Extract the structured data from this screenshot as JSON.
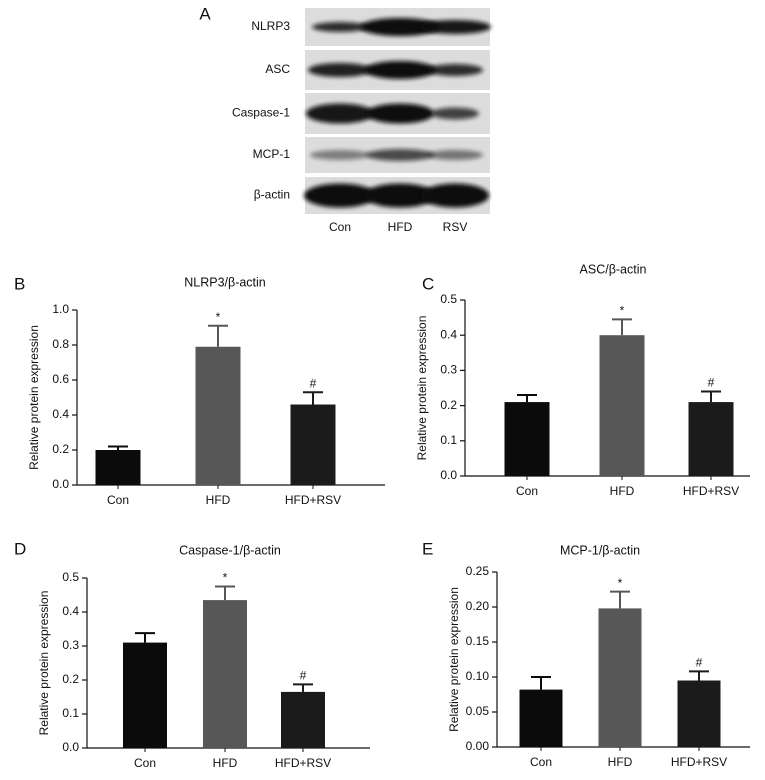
{
  "panel_a": {
    "panel_label": "A",
    "rows": [
      "NLRP3",
      "ASC",
      "Caspase-1",
      "MCP-1",
      "β-actin"
    ],
    "lanes": [
      "Con",
      "HFD",
      "RSV"
    ]
  },
  "chart_data": [
    {
      "type": "bar",
      "panel_label": "B",
      "title": "NLRP3/β-actin",
      "y_label": "Relative protein expression",
      "categories": [
        "Con",
        "HFD",
        "HFD+RSV"
      ],
      "values": [
        0.2,
        0.79,
        0.46
      ],
      "errors": [
        0.02,
        0.12,
        0.07
      ],
      "value_annotations": [
        null,
        "*",
        "#"
      ],
      "colors": [
        "#0b0b0b",
        "#575757",
        "#1b1b1b"
      ],
      "ylim": [
        0,
        1
      ],
      "yticks": [
        {
          "value": 0,
          "label": "0.0"
        },
        0.2,
        0.4,
        0.6,
        0.8,
        {
          "value": 1,
          "label": "1.0"
        }
      ]
    },
    {
      "type": "bar",
      "panel_label": "C",
      "title": "ASC/β-actin",
      "y_label": "Relative protein expression",
      "categories": [
        "Con",
        "HFD",
        "HFD+RSV"
      ],
      "values": [
        0.21,
        0.4,
        0.21
      ],
      "errors": [
        0.02,
        0.045,
        0.03
      ],
      "value_annotations": [
        null,
        "*",
        "#"
      ],
      "colors": [
        "#0b0b0b",
        "#575757",
        "#1b1b1b"
      ],
      "ylim": [
        0,
        0.5
      ],
      "yticks": [
        {
          "value": 0,
          "label": "0.0"
        },
        0.1,
        0.2,
        0.3,
        0.4,
        0.5
      ]
    },
    {
      "type": "bar",
      "panel_label": "D",
      "title": "Caspase-1/β-actin",
      "y_label": "Relative protein expression",
      "categories": [
        "Con",
        "HFD",
        "HFD+RSV"
      ],
      "values": [
        0.31,
        0.435,
        0.165
      ],
      "errors": [
        0.028,
        0.04,
        0.022
      ],
      "value_annotations": [
        null,
        "*",
        "#"
      ],
      "colors": [
        "#0b0b0b",
        "#575757",
        "#1b1b1b"
      ],
      "ylim": [
        0,
        0.5
      ],
      "yticks": [
        {
          "value": 0,
          "label": "0.0"
        },
        0.1,
        0.2,
        0.3,
        0.4,
        0.5
      ]
    },
    {
      "type": "bar",
      "panel_label": "E",
      "title": "MCP-1/β-actin",
      "y_label": "Relative protein expression",
      "categories": [
        "Con",
        "HFD",
        "HFD+RSV"
      ],
      "values": [
        0.082,
        0.198,
        0.095
      ],
      "errors": [
        0.018,
        0.024,
        0.013
      ],
      "value_annotations": [
        null,
        "*",
        "#"
      ],
      "colors": [
        "#0b0b0b",
        "#575757",
        "#1b1b1b"
      ],
      "ylim": [
        0,
        0.25
      ],
      "yticks": [
        {
          "value": 0,
          "label": "0.00"
        },
        0.05,
        {
          "value": 0.1,
          "label": "0.10"
        },
        0.15,
        {
          "value": 0.2,
          "label": "0.20"
        },
        0.25
      ]
    }
  ]
}
